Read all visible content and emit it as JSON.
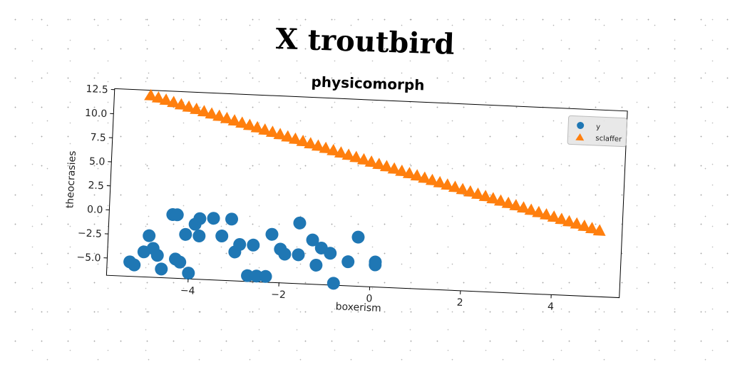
{
  "chart_data": {
    "type": "scatter",
    "title": "X troutbird",
    "subtitle": "physicomorph",
    "xlabel": "boxerism",
    "ylabel": "theocrasies",
    "xlim": [
      -5.8,
      5.5
    ],
    "ylim": [
      -6.8,
      12.6
    ],
    "xticks": [
      -4,
      -2,
      0,
      2,
      4
    ],
    "xtick_labels": [
      "−4",
      "−2",
      "0",
      "2",
      "4"
    ],
    "yticks": [
      12.5,
      10.0,
      7.5,
      5.0,
      2.5,
      0.0,
      -2.5,
      -5.0
    ],
    "ytick_labels": [
      "12.5",
      "10.0",
      "7.5",
      "5.0",
      "2.5",
      "0.0",
      "−2.5",
      "−5.0"
    ],
    "grid": false,
    "legend_position": "top-right",
    "series": [
      {
        "name": "y",
        "marker": "circle",
        "color": "#1f77b4",
        "points": [
          [
            -5.3,
            -5.3
          ],
          [
            -5.2,
            -5.6
          ],
          [
            -5.0,
            -4.2
          ],
          [
            -4.9,
            -2.5
          ],
          [
            -4.8,
            -3.8
          ],
          [
            -4.7,
            -4.5
          ],
          [
            -4.6,
            -5.9
          ],
          [
            -4.4,
            -0.2
          ],
          [
            -4.3,
            -0.2
          ],
          [
            -4.3,
            -4.8
          ],
          [
            -4.2,
            -5.1
          ],
          [
            -4.0,
            -6.2
          ],
          [
            -3.9,
            -1.1
          ],
          [
            -3.8,
            -0.5
          ],
          [
            -3.8,
            -2.3
          ],
          [
            -4.1,
            -2.2
          ],
          [
            -3.5,
            -0.4
          ],
          [
            -3.3,
            -2.2
          ],
          [
            -3.1,
            -0.4
          ],
          [
            -3.0,
            -3.8
          ],
          [
            -2.9,
            -3.0
          ],
          [
            -2.7,
            -6.2
          ],
          [
            -2.6,
            -3.0
          ],
          [
            -2.5,
            -6.2
          ],
          [
            -2.3,
            -6.2
          ],
          [
            -2.2,
            -1.8
          ],
          [
            -2.0,
            -3.3
          ],
          [
            -1.9,
            -3.8
          ],
          [
            -1.6,
            -0.5
          ],
          [
            -1.6,
            -3.8
          ],
          [
            -1.3,
            -2.2
          ],
          [
            -1.2,
            -4.8
          ],
          [
            -1.1,
            -3.0
          ],
          [
            -0.9,
            -3.5
          ],
          [
            -0.8,
            -6.6
          ],
          [
            -0.5,
            -4.3
          ],
          [
            -0.3,
            -1.7
          ],
          [
            0.1,
            -4.5
          ],
          [
            0.1,
            -4.2
          ]
        ]
      },
      {
        "name": "sclaffer",
        "marker": "triangle",
        "color": "#ff7f0e",
        "x_start": -5.0,
        "x_end": 5.0,
        "y_start": 12.0,
        "y_end": 0.0,
        "count": 60
      }
    ]
  }
}
